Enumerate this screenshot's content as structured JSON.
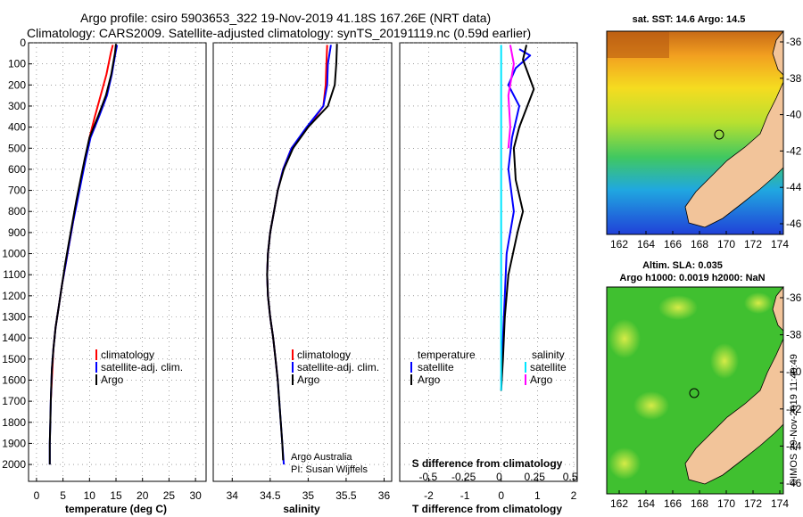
{
  "header": {
    "line1": "Argo profile: csiro 5903653_322 19-Nov-2019 41.18S 167.26E (NRT data)",
    "line2": "Climatology: CARS2009. Satellite-adjusted climatology: synTS_20191119.nc (0.59d earlier)"
  },
  "colors": {
    "climatology": "#ff0000",
    "satellite": "#0000ff",
    "argo": "#000000",
    "sal_diff_climatology": "#00e5ff",
    "sal_diff_satellite": "#ff00ff",
    "land": "#f2c49a"
  },
  "chart_data": [
    {
      "type": "line",
      "name": "temperature-profile",
      "xlabel": "temperature (deg C)",
      "ylabel": "",
      "xlim": [
        -1.5,
        32
      ],
      "ylim": [
        2080,
        0
      ],
      "xticks": [
        0,
        5,
        10,
        15,
        20,
        25,
        30
      ],
      "yticks": [
        0,
        100,
        200,
        300,
        400,
        500,
        600,
        700,
        800,
        900,
        1000,
        1100,
        1200,
        1300,
        1400,
        1500,
        1600,
        1700,
        1800,
        1900,
        2000
      ],
      "legend": [
        "climatology",
        "satellite-adj. clim.",
        "Argo"
      ],
      "series": [
        {
          "name": "climatology",
          "color": "#ff0000",
          "x": [
            14.4,
            14.0,
            13.2,
            12.1,
            11.0,
            10.0,
            9.2,
            8.4,
            7.6,
            6.9,
            6.2,
            5.5,
            4.8,
            4.2,
            3.6,
            3.2,
            3.0,
            2.8,
            2.7
          ],
          "y": [
            10,
            50,
            150,
            250,
            350,
            450,
            550,
            650,
            750,
            850,
            950,
            1050,
            1150,
            1250,
            1350,
            1450,
            1550,
            1650,
            1700
          ]
        },
        {
          "name": "satellite-adj. clim.",
          "color": "#0000ff",
          "x": [
            15.2,
            14.9,
            14.2,
            13.3,
            11.8,
            10.2,
            9.3,
            8.5,
            7.7,
            6.9,
            6.2,
            5.5,
            4.8,
            4.2,
            3.6,
            3.2,
            2.9,
            2.7,
            2.6,
            2.5,
            2.5
          ],
          "y": [
            10,
            50,
            150,
            250,
            350,
            450,
            550,
            650,
            750,
            850,
            950,
            1050,
            1150,
            1250,
            1350,
            1450,
            1550,
            1700,
            1800,
            1900,
            2000
          ]
        },
        {
          "name": "Argo",
          "color": "#000000",
          "x": [
            15.0,
            14.8,
            14.1,
            13.1,
            11.6,
            10.0,
            9.1,
            8.3,
            7.5,
            6.8,
            6.1,
            5.4,
            4.8,
            4.2,
            3.6,
            3.2,
            2.9,
            2.7,
            2.6,
            2.5,
            2.5
          ],
          "y": [
            5,
            50,
            150,
            250,
            350,
            450,
            550,
            650,
            750,
            850,
            950,
            1050,
            1150,
            1250,
            1350,
            1450,
            1550,
            1700,
            1800,
            1900,
            2000
          ]
        }
      ]
    },
    {
      "type": "line",
      "name": "salinity-profile",
      "xlabel": "salinity",
      "ylabel": "",
      "xlim": [
        33.75,
        36.1
      ],
      "ylim": [
        2080,
        0
      ],
      "xticks": [
        34,
        34.5,
        35,
        35.5,
        36
      ],
      "legend": [
        "climatology",
        "satellite-adj. clim.",
        "Argo"
      ],
      "annotation": [
        "Argo Australia",
        "PI: Susan Wijffels"
      ],
      "series": [
        {
          "name": "climatology",
          "color": "#ff0000",
          "x": [
            35.25,
            35.24,
            35.23,
            35.2,
            35.0,
            34.78,
            34.67,
            34.6,
            34.55,
            34.5,
            34.47,
            34.46,
            34.47,
            34.5,
            34.54,
            34.57,
            34.6
          ],
          "y": [
            10,
            100,
            200,
            300,
            400,
            500,
            600,
            700,
            800,
            900,
            1000,
            1100,
            1200,
            1300,
            1400,
            1500,
            1600
          ]
        },
        {
          "name": "satellite-adj. clim.",
          "color": "#0000ff",
          "x": [
            35.3,
            35.26,
            35.25,
            35.2,
            34.98,
            34.78,
            34.67,
            34.6,
            34.55,
            34.5,
            34.47,
            34.46,
            34.47,
            34.5,
            34.54,
            34.57,
            34.6,
            34.62,
            34.64,
            34.66,
            34.68
          ],
          "y": [
            10,
            100,
            200,
            300,
            400,
            500,
            600,
            700,
            800,
            900,
            1000,
            1100,
            1200,
            1300,
            1400,
            1500,
            1600,
            1700,
            1800,
            1900,
            2000
          ]
        },
        {
          "name": "Argo",
          "color": "#000000",
          "x": [
            35.38,
            35.37,
            35.35,
            35.26,
            35.0,
            34.8,
            34.68,
            34.6,
            34.55,
            34.5,
            34.47,
            34.46,
            34.47,
            34.5,
            34.54,
            34.57,
            34.6,
            34.62,
            34.64,
            34.66,
            34.67
          ],
          "y": [
            5,
            100,
            200,
            300,
            400,
            500,
            600,
            700,
            800,
            900,
            1000,
            1100,
            1200,
            1300,
            1400,
            1500,
            1600,
            1700,
            1800,
            1900,
            1980
          ]
        }
      ]
    },
    {
      "type": "line",
      "name": "difference-profile",
      "xlabel": "T difference from climatology",
      "xlabel2": "S difference from climatology",
      "xlim": [
        -2.8,
        2.1
      ],
      "ylim": [
        2080,
        0
      ],
      "xticks": [
        -2,
        -1,
        0,
        1,
        2
      ],
      "xticks_top_labels": [
        "-0.5",
        "-0.25",
        "0",
        "0.25",
        "0.5"
      ],
      "xticks_top_values": [
        -0.5,
        -0.25,
        0,
        0.25,
        0.5
      ],
      "legend_temperature": [
        "temperature",
        "satellite",
        "Argo"
      ],
      "legend_salinity": [
        "salinity",
        "satellite",
        "Argo"
      ],
      "series": [
        {
          "name": "T satellite",
          "color": "#0000ff",
          "x": [
            0.5,
            0.8,
            0.4,
            0.2,
            0.5,
            0.3,
            0.2,
            0.35,
            0.15,
            0.1,
            0.05,
            0.0
          ],
          "y": [
            30,
            60,
            120,
            200,
            300,
            450,
            600,
            800,
            1000,
            1200,
            1400,
            1600
          ]
        },
        {
          "name": "T Argo",
          "color": "#000000",
          "x": [
            0.7,
            0.6,
            0.9,
            0.5,
            0.35,
            0.4,
            0.6,
            0.45,
            0.2,
            0.1,
            0.05,
            0.0
          ],
          "y": [
            10,
            80,
            220,
            400,
            500,
            650,
            800,
            900,
            1100,
            1300,
            1500,
            1650
          ]
        },
        {
          "name": "S satellite",
          "color": "#00e5ff",
          "x": [
            0.0,
            0.0,
            0.0,
            0.0,
            0.0,
            0.0
          ],
          "y": [
            10,
            300,
            700,
            1100,
            1400,
            1650
          ]
        },
        {
          "name": "S Argo",
          "color": "#ff00ff",
          "x": [
            0.25,
            0.35,
            0.2,
            0.25,
            0.2
          ],
          "y": [
            10,
            100,
            250,
            400,
            500
          ]
        }
      ]
    }
  ],
  "maps": {
    "sst": {
      "title": "sat. SST: 14.6 Argo: 14.5",
      "yticks": [
        "-36",
        "-38",
        "-40",
        "-42",
        "-44",
        "-46"
      ],
      "xticks": [
        "162",
        "164",
        "166",
        "168",
        "170",
        "172",
        "174"
      ]
    },
    "sla": {
      "title1": "Altim. SLA: 0.035",
      "title2": "Argo h1000: 0.0019 h2000: NaN",
      "yticks": [
        "-36",
        "-38",
        "-40",
        "-42",
        "-44",
        "-46"
      ],
      "xticks": [
        "162",
        "164",
        "166",
        "168",
        "170",
        "172",
        "174"
      ]
    }
  },
  "watermark": "©IMOS 29-Nov-2019 11:40:49"
}
